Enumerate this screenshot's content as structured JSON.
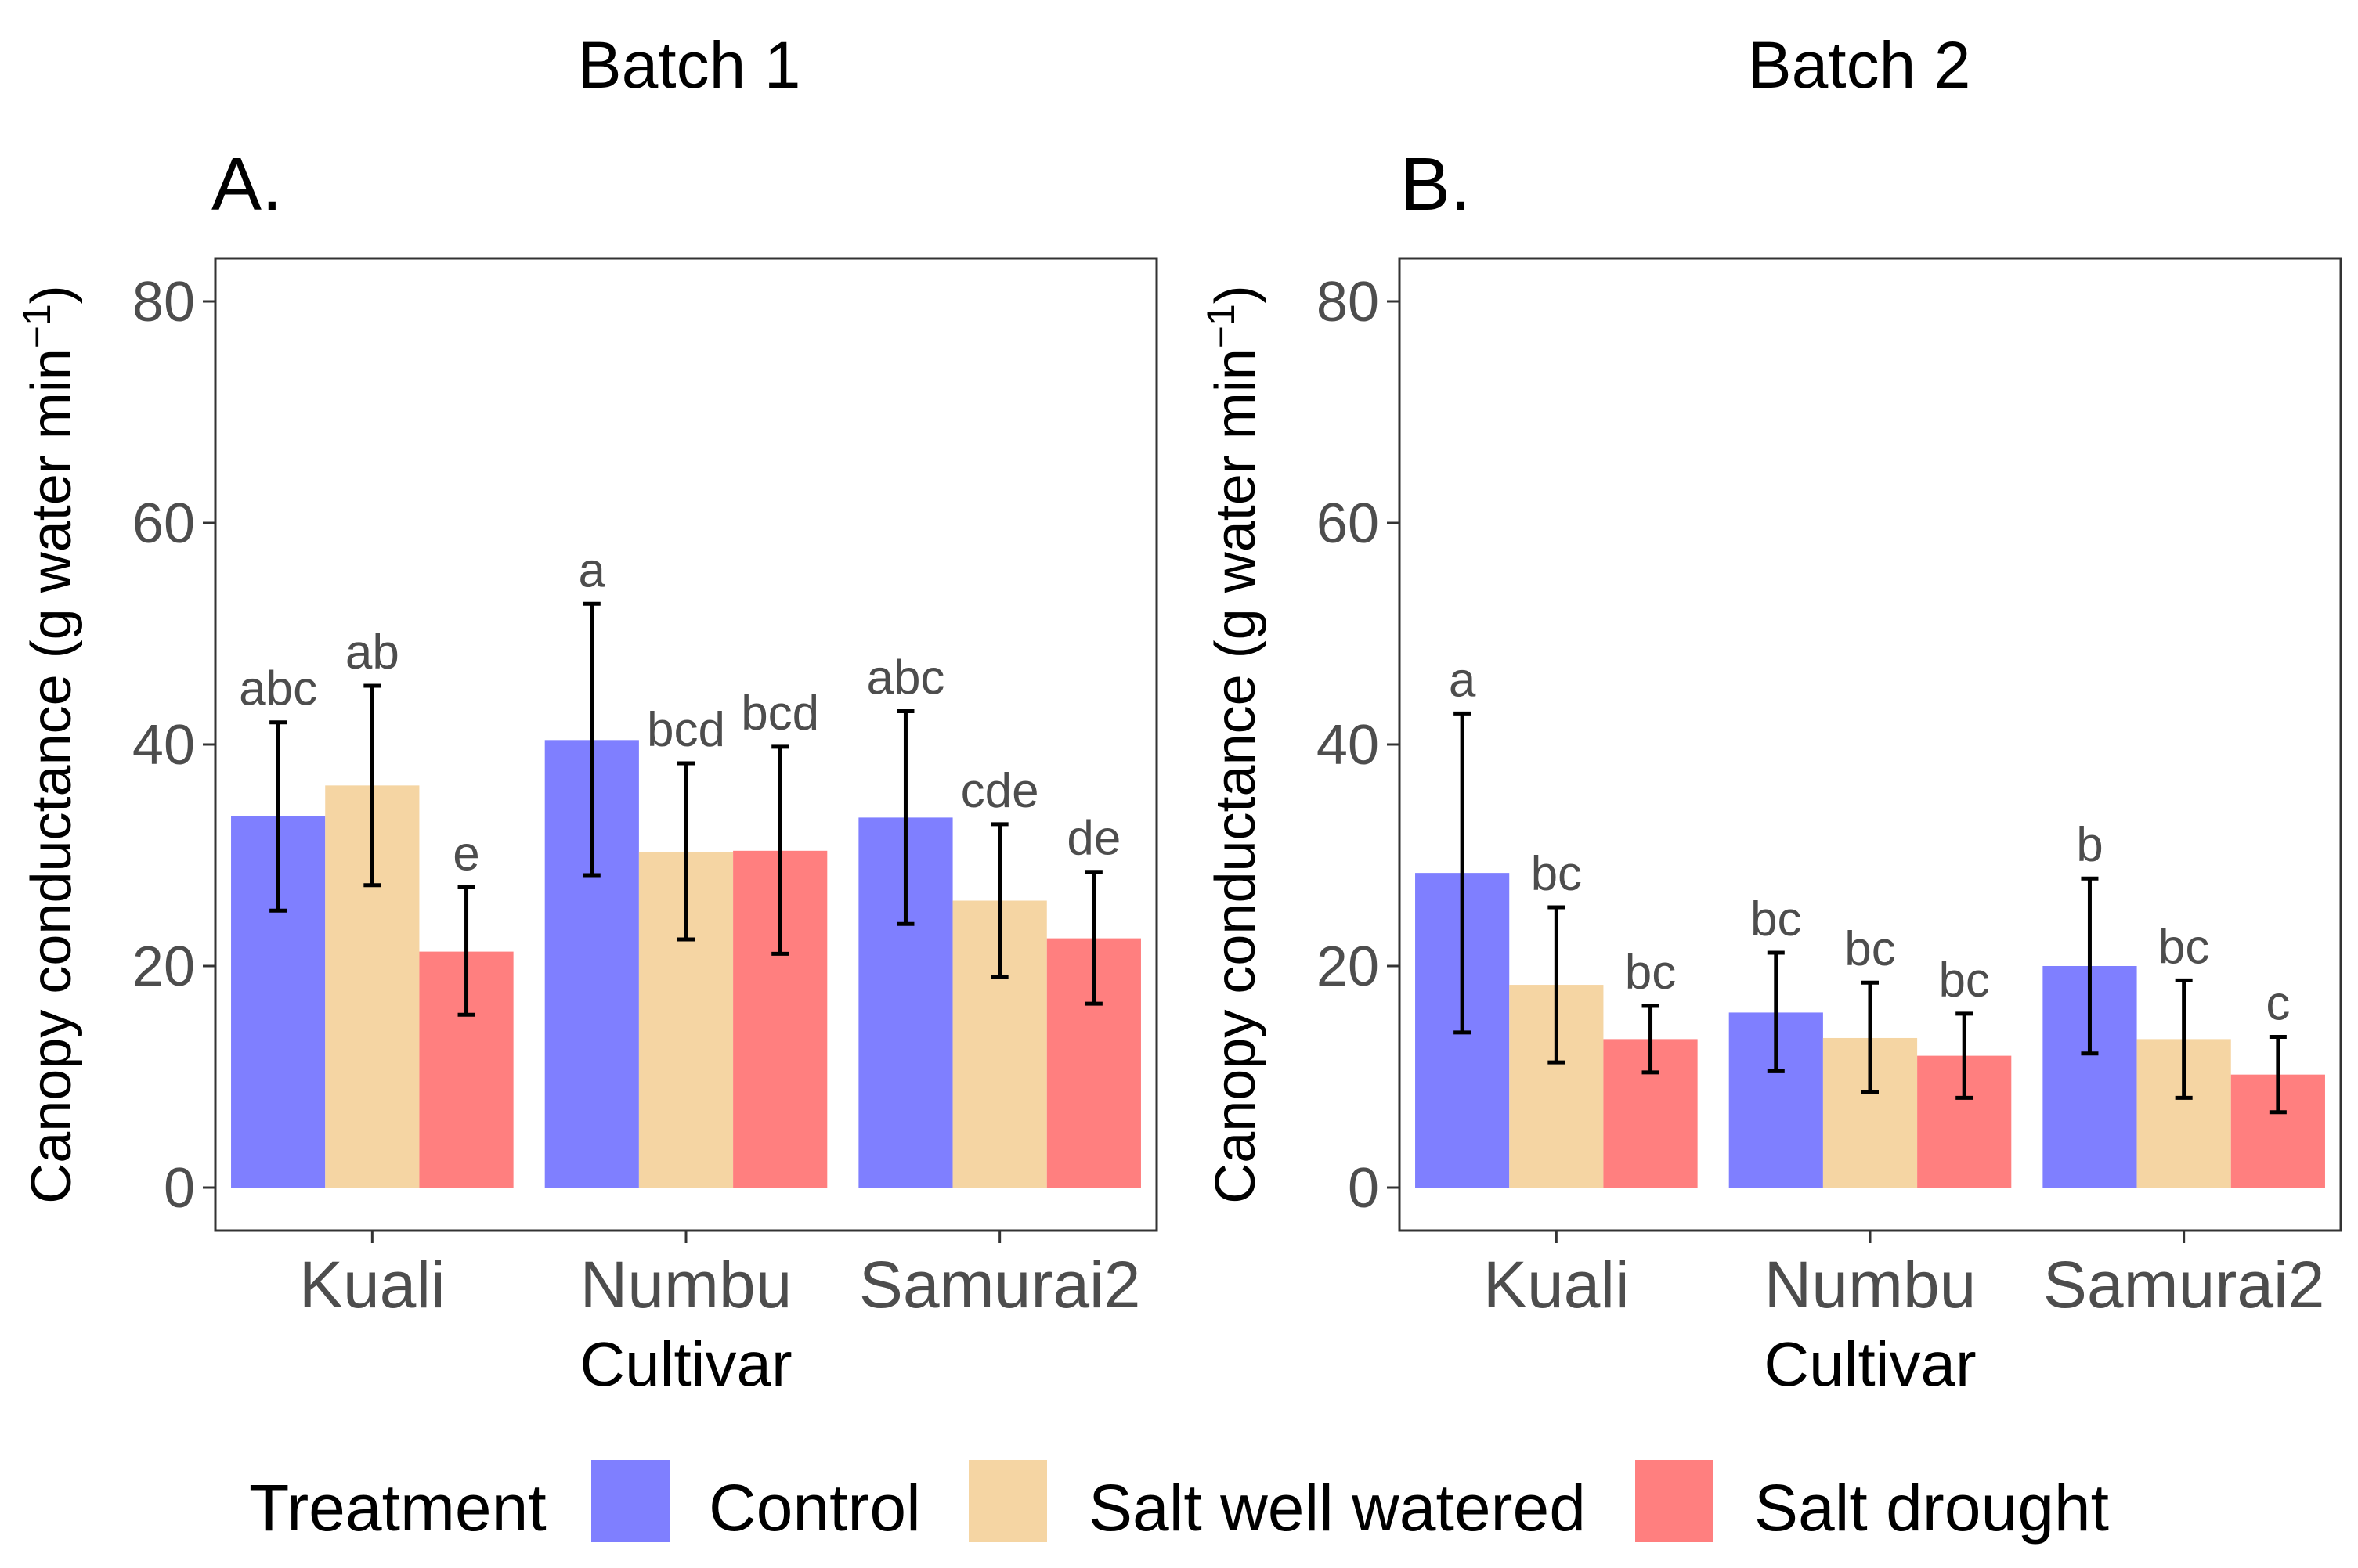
{
  "figure": {
    "legend": {
      "title": "Treatment",
      "items": [
        {
          "label": "Control",
          "color": "#7f7fff"
        },
        {
          "label": "Salt well watered",
          "color": "#f5d5a3"
        },
        {
          "label": "Salt drought",
          "color": "#ff7f7f"
        }
      ]
    }
  },
  "chart_data": [
    {
      "type": "bar",
      "batch": "Batch 1",
      "panel": "A.",
      "xlabel": "Cultivar",
      "ylabel": "Canopy conductance (g water min",
      "ylabel_sup": "−1",
      "ylabel_close": ")",
      "ylim": [
        0,
        80
      ],
      "yticks": [
        0,
        20,
        40,
        60,
        80
      ],
      "categories": [
        "Kuali",
        "Numbu",
        "Samurai2"
      ],
      "series": [
        {
          "name": "Control",
          "values": [
            33.5,
            40.4,
            33.4
          ],
          "err_low": [
            25.0,
            28.2,
            23.8
          ],
          "err_high": [
            42.0,
            52.7,
            43.0
          ],
          "letters": [
            "abc",
            "a",
            "abc"
          ]
        },
        {
          "name": "Salt well watered",
          "values": [
            36.3,
            30.3,
            25.9
          ],
          "err_low": [
            27.3,
            22.4,
            19.0
          ],
          "err_high": [
            45.3,
            38.3,
            32.8
          ],
          "letters": [
            "ab",
            "bcd",
            "cde"
          ]
        },
        {
          "name": "Salt drought",
          "values": [
            21.3,
            30.4,
            22.5
          ],
          "err_low": [
            15.6,
            21.1,
            16.6
          ],
          "err_high": [
            27.1,
            39.8,
            28.5
          ],
          "letters": [
            "e",
            "bcd",
            "de"
          ]
        }
      ]
    },
    {
      "type": "bar",
      "batch": "Batch 2",
      "panel": "B.",
      "xlabel": "Cultivar",
      "ylabel": "Canopy conductance (g water min",
      "ylabel_sup": "−1",
      "ylabel_close": ")",
      "ylim": [
        0,
        80
      ],
      "yticks": [
        0,
        20,
        40,
        60,
        80
      ],
      "categories": [
        "Kuali",
        "Numbu",
        "Samurai2"
      ],
      "series": [
        {
          "name": "Control",
          "values": [
            28.4,
            15.8,
            20.0
          ],
          "err_low": [
            14.0,
            10.5,
            12.1
          ],
          "err_high": [
            42.8,
            21.2,
            27.9
          ],
          "letters": [
            "a",
            "bc",
            "b"
          ]
        },
        {
          "name": "Salt well watered",
          "values": [
            18.3,
            13.5,
            13.4
          ],
          "err_low": [
            11.3,
            8.6,
            8.1
          ],
          "err_high": [
            25.3,
            18.5,
            18.7
          ],
          "letters": [
            "bc",
            "bc",
            "bc"
          ]
        },
        {
          "name": "Salt drought",
          "values": [
            13.4,
            11.9,
            10.2
          ],
          "err_low": [
            10.4,
            8.1,
            6.8
          ],
          "err_high": [
            16.4,
            15.7,
            13.6
          ],
          "letters": [
            "bc",
            "bc",
            "c"
          ]
        }
      ]
    }
  ]
}
